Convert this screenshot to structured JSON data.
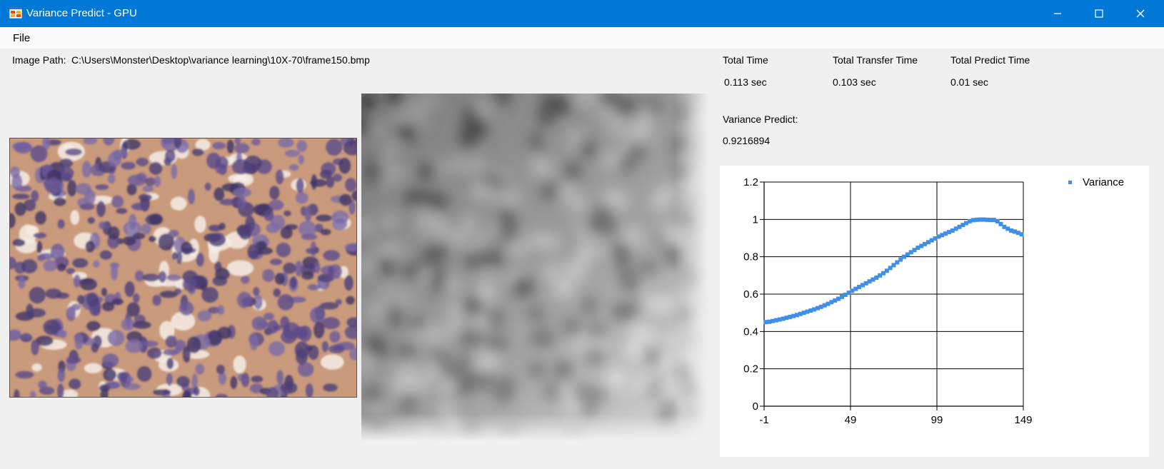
{
  "window": {
    "title": "Variance Predict - GPU",
    "icon": "app-window-icon",
    "controls": [
      "minimize-icon",
      "maximize-icon",
      "close-icon"
    ]
  },
  "menu": {
    "file": "File"
  },
  "image_path": {
    "label": "Image Path:",
    "value": "C:\\Users\\Monster\\Desktop\\variance learning\\10X-70\\frame150.bmp"
  },
  "timing": {
    "total_time_label": "Total Time",
    "total_time_value": "0.113 sec",
    "transfer_label": "Total Transfer Time",
    "transfer_value": "0.103 sec",
    "predict_label": "Total Predict Time",
    "predict_value": "0.01 sec"
  },
  "variance": {
    "label": "Variance Predict:",
    "value": "0.9216894"
  },
  "images": {
    "source": "microscopy-image (purple and tan stained cells)",
    "processed": "grayscale-variance-map"
  },
  "colors": {
    "titlebar": "#0078d7",
    "series": "#3f8ee8"
  },
  "chart_data": {
    "type": "scatter",
    "x_ticks": [
      "-1",
      "49",
      "99",
      "149"
    ],
    "y_ticks": [
      "0",
      "0.2",
      "0.4",
      "0.6",
      "0.8",
      "1",
      "1.2"
    ],
    "xlim": [
      -1,
      149
    ],
    "ylim": [
      0,
      1.2
    ],
    "grid": true,
    "legend_position": "top-right",
    "series": [
      {
        "name": "Variance",
        "points": [
          [
            0,
            0.45
          ],
          [
            2,
            0.452
          ],
          [
            4,
            0.456
          ],
          [
            6,
            0.46
          ],
          [
            8,
            0.464
          ],
          [
            10,
            0.468
          ],
          [
            12,
            0.473
          ],
          [
            14,
            0.478
          ],
          [
            16,
            0.483
          ],
          [
            18,
            0.488
          ],
          [
            20,
            0.494
          ],
          [
            22,
            0.5
          ],
          [
            24,
            0.506
          ],
          [
            26,
            0.512
          ],
          [
            28,
            0.518
          ],
          [
            30,
            0.525
          ],
          [
            32,
            0.532
          ],
          [
            34,
            0.54
          ],
          [
            36,
            0.548
          ],
          [
            38,
            0.557
          ],
          [
            40,
            0.566
          ],
          [
            42,
            0.575
          ],
          [
            44,
            0.585
          ],
          [
            46,
            0.596
          ],
          [
            48,
            0.607
          ],
          [
            50,
            0.618
          ],
          [
            52,
            0.628
          ],
          [
            54,
            0.638
          ],
          [
            56,
            0.648
          ],
          [
            58,
            0.658
          ],
          [
            60,
            0.668
          ],
          [
            62,
            0.678
          ],
          [
            64,
            0.688
          ],
          [
            66,
            0.7
          ],
          [
            68,
            0.712
          ],
          [
            70,
            0.725
          ],
          [
            72,
            0.74
          ],
          [
            74,
            0.755
          ],
          [
            76,
            0.77
          ],
          [
            78,
            0.785
          ],
          [
            80,
            0.8
          ],
          [
            82,
            0.812
          ],
          [
            84,
            0.824
          ],
          [
            86,
            0.836
          ],
          [
            88,
            0.848
          ],
          [
            90,
            0.858
          ],
          [
            92,
            0.868
          ],
          [
            94,
            0.878
          ],
          [
            96,
            0.888
          ],
          [
            98,
            0.898
          ],
          [
            100,
            0.908
          ],
          [
            102,
            0.916
          ],
          [
            104,
            0.924
          ],
          [
            106,
            0.932
          ],
          [
            108,
            0.94
          ],
          [
            110,
            0.95
          ],
          [
            112,
            0.96
          ],
          [
            114,
            0.97
          ],
          [
            116,
            0.98
          ],
          [
            118,
            0.99
          ],
          [
            120,
            0.996
          ],
          [
            122,
            0.998
          ],
          [
            124,
            0.999
          ],
          [
            126,
            0.999
          ],
          [
            128,
            0.998
          ],
          [
            130,
            0.997
          ],
          [
            132,
            0.997
          ],
          [
            134,
            0.99
          ],
          [
            136,
            0.975
          ],
          [
            138,
            0.96
          ],
          [
            140,
            0.95
          ],
          [
            142,
            0.94
          ],
          [
            144,
            0.935
          ],
          [
            146,
            0.928
          ],
          [
            148,
            0.92
          ]
        ]
      }
    ]
  }
}
